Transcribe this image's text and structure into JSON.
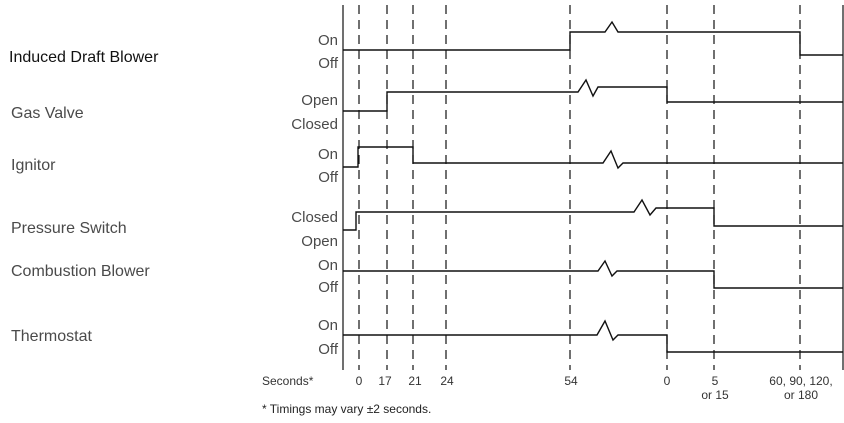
{
  "rows": [
    {
      "name": "Induced Draft Blower",
      "high": "On",
      "low": "Off"
    },
    {
      "name": "Gas Valve",
      "high": "Open",
      "low": "Closed"
    },
    {
      "name": "Ignitor",
      "high": "On",
      "low": "Off"
    },
    {
      "name": "Pressure Switch",
      "high": "Closed",
      "low": "Open"
    },
    {
      "name": "Combustion Blower",
      "high": "On",
      "low": "Off"
    },
    {
      "name": "Thermostat",
      "high": "On",
      "low": "Off"
    }
  ],
  "axis": {
    "label": "Seconds*",
    "ticks": [
      {
        "line1": "0",
        "line2": ""
      },
      {
        "line1": "17",
        "line2": ""
      },
      {
        "line1": "21",
        "line2": ""
      },
      {
        "line1": "24",
        "line2": ""
      },
      {
        "line1": "54",
        "line2": ""
      },
      {
        "line1": "0",
        "line2": ""
      },
      {
        "line1": "5",
        "line2": "or 15"
      },
      {
        "line1": "60, 90, 120,",
        "line2": "or 180"
      }
    ]
  },
  "footnote": "* Timings may vary ±2 seconds."
}
